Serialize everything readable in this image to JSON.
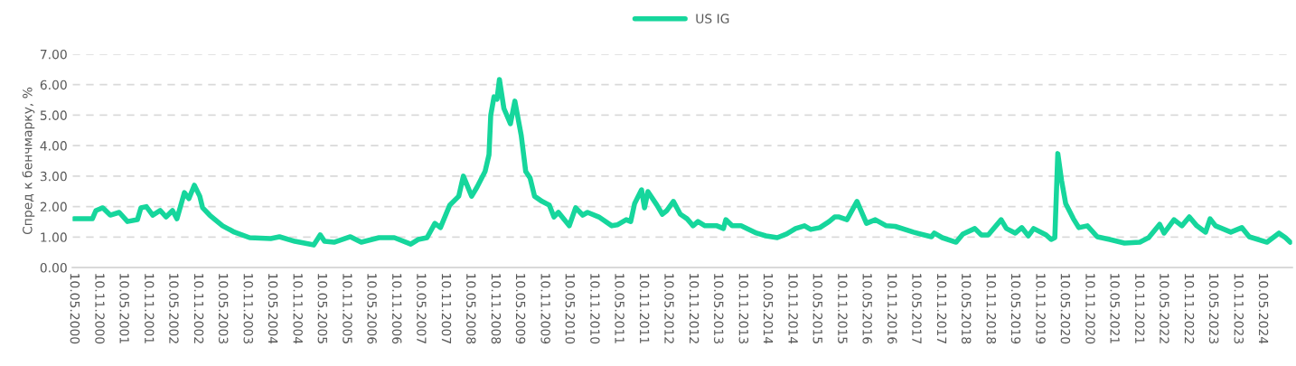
{
  "chart_data": {
    "type": "line",
    "ylabel": "Спред к бенчмарку, %",
    "legend": "top",
    "grid": "y",
    "line_style": "solid",
    "marker": "none",
    "xlim": [
      "2000-05-01",
      "2024-12-15"
    ],
    "ylim": [
      0,
      7
    ],
    "yticks": [
      {
        "value": 0,
        "label": "0.00"
      },
      {
        "value": 1,
        "label": "1.00"
      },
      {
        "value": 2,
        "label": "2.00"
      },
      {
        "value": 3,
        "label": "3.00"
      },
      {
        "value": 4,
        "label": "4.00"
      },
      {
        "value": 5,
        "label": "5.00"
      },
      {
        "value": 6,
        "label": "6.00"
      },
      {
        "value": 7,
        "label": "7.00"
      }
    ],
    "xticks": [
      {
        "value": "2000-05-10",
        "label": "10.05.2000"
      },
      {
        "value": "2000-11-10",
        "label": "10.11.2000"
      },
      {
        "value": "2001-05-10",
        "label": "10.05.2001"
      },
      {
        "value": "2001-11-10",
        "label": "10.11.2001"
      },
      {
        "value": "2002-05-10",
        "label": "10.05.2002"
      },
      {
        "value": "2002-11-10",
        "label": "10.11.2002"
      },
      {
        "value": "2003-05-10",
        "label": "10.05.2003"
      },
      {
        "value": "2003-11-10",
        "label": "10.11.2003"
      },
      {
        "value": "2004-05-10",
        "label": "10.05.2004"
      },
      {
        "value": "2004-11-10",
        "label": "10.11.2004"
      },
      {
        "value": "2005-05-10",
        "label": "10.05.2005"
      },
      {
        "value": "2005-11-10",
        "label": "10.11.2005"
      },
      {
        "value": "2006-05-10",
        "label": "10.05.2006"
      },
      {
        "value": "2006-11-10",
        "label": "10.11.2006"
      },
      {
        "value": "2007-05-10",
        "label": "10.05.2007"
      },
      {
        "value": "2007-11-10",
        "label": "10.11.2007"
      },
      {
        "value": "2008-05-10",
        "label": "10.05.2008"
      },
      {
        "value": "2008-11-10",
        "label": "10.11.2008"
      },
      {
        "value": "2009-05-10",
        "label": "10.05.2009"
      },
      {
        "value": "2009-11-10",
        "label": "10.11.2009"
      },
      {
        "value": "2010-05-10",
        "label": "10.05.2010"
      },
      {
        "value": "2010-11-10",
        "label": "10.11.2010"
      },
      {
        "value": "2011-05-10",
        "label": "10.05.2011"
      },
      {
        "value": "2011-11-10",
        "label": "10.11.2011"
      },
      {
        "value": "2012-05-10",
        "label": "10.05.2012"
      },
      {
        "value": "2012-11-10",
        "label": "10.11.2012"
      },
      {
        "value": "2013-05-10",
        "label": "10.05.2013"
      },
      {
        "value": "2013-11-10",
        "label": "10.11.2013"
      },
      {
        "value": "2014-05-10",
        "label": "10.05.2014"
      },
      {
        "value": "2014-11-10",
        "label": "10.11.2014"
      },
      {
        "value": "2015-05-10",
        "label": "10.05.2015"
      },
      {
        "value": "2015-11-10",
        "label": "10.11.2015"
      },
      {
        "value": "2016-05-10",
        "label": "10.05.2016"
      },
      {
        "value": "2016-11-10",
        "label": "10.11.2016"
      },
      {
        "value": "2017-05-10",
        "label": "10.05.2017"
      },
      {
        "value": "2017-11-10",
        "label": "10.11.2017"
      },
      {
        "value": "2018-05-10",
        "label": "10.05.2018"
      },
      {
        "value": "2018-11-10",
        "label": "10.11.2018"
      },
      {
        "value": "2019-05-10",
        "label": "10.05.2019"
      },
      {
        "value": "2019-11-10",
        "label": "10.11.2019"
      },
      {
        "value": "2020-05-10",
        "label": "10.05.2020"
      },
      {
        "value": "2020-11-10",
        "label": "10.11.2020"
      },
      {
        "value": "2021-05-10",
        "label": "10.05.2021"
      },
      {
        "value": "2021-11-10",
        "label": "10.11.2021"
      },
      {
        "value": "2022-05-10",
        "label": "10.05.2022"
      },
      {
        "value": "2022-11-10",
        "label": "10.11.2022"
      },
      {
        "value": "2023-05-10",
        "label": "10.05.2023"
      },
      {
        "value": "2023-11-10",
        "label": "10.11.2023"
      },
      {
        "value": "2024-05-10",
        "label": "10.05.2024"
      }
    ],
    "series": [
      {
        "name": "US IG",
        "color": "#16d69c",
        "x": [
          "2000-05-10",
          "2000-09-24",
          "2000-10-20",
          "2000-12-10",
          "2001-02-03",
          "2001-04-10",
          "2001-06-10",
          "2001-08-22",
          "2001-09-17",
          "2001-10-27",
          "2001-12-13",
          "2002-02-06",
          "2002-03-22",
          "2002-05-08",
          "2002-06-10",
          "2002-08-04",
          "2002-09-06",
          "2002-10-16",
          "2002-11-25",
          "2002-12-16",
          "2003-02-06",
          "2003-03-10",
          "2003-05-12",
          "2003-08-08",
          "2003-11-28",
          "2004-05-01",
          "2004-07-05",
          "2004-10-27",
          "2005-03-15",
          "2005-05-01",
          "2005-06-03",
          "2005-08-11",
          "2005-12-10",
          "2006-02-28",
          "2006-07-09",
          "2006-10-30",
          "2007-02-28",
          "2007-04-23",
          "2007-06-28",
          "2007-08-25",
          "2007-10-05",
          "2007-12-13",
          "2008-02-17",
          "2008-03-22",
          "2008-05-22",
          "2008-07-01",
          "2008-08-29",
          "2008-09-27",
          "2008-10-10",
          "2008-11-03",
          "2008-11-25",
          "2008-12-13",
          "2009-01-15",
          "2009-03-04",
          "2009-04-06",
          "2009-05-23",
          "2009-06-25",
          "2009-07-27",
          "2009-08-29",
          "2009-10-23",
          "2009-12-16",
          "2010-01-19",
          "2010-02-21",
          "2010-05-12",
          "2010-06-28",
          "2010-08-19",
          "2010-09-24",
          "2010-12-16",
          "2011-03-22",
          "2011-05-01",
          "2011-07-06",
          "2011-08-08",
          "2011-09-06",
          "2011-10-27",
          "2011-11-18",
          "2011-12-13",
          "2012-02-17",
          "2012-03-28",
          "2012-05-01",
          "2012-06-18",
          "2012-08-08",
          "2012-09-27",
          "2012-11-10",
          "2012-12-16",
          "2013-02-06",
          "2013-05-05",
          "2013-06-22",
          "2013-07-10",
          "2013-08-25",
          "2013-10-30",
          "2014-02-21",
          "2014-05-01",
          "2014-07-24",
          "2014-10-01",
          "2014-12-06",
          "2015-02-10",
          "2015-03-28",
          "2015-06-03",
          "2015-08-11",
          "2015-09-20",
          "2015-10-23",
          "2015-12-20",
          "2016-03-03",
          "2016-05-12",
          "2016-07-16",
          "2016-10-05",
          "2016-12-10",
          "2017-04-23",
          "2017-09-03",
          "2017-09-24",
          "2017-11-22",
          "2018-03-04",
          "2018-04-23",
          "2018-07-20",
          "2018-09-06",
          "2018-10-27",
          "2019-01-30",
          "2019-03-10",
          "2019-05-15",
          "2019-07-01",
          "2019-08-19",
          "2019-09-27",
          "2019-12-28",
          "2020-02-03",
          "2020-03-01",
          "2020-03-23",
          "2020-04-20",
          "2020-05-20",
          "2020-07-16",
          "2020-08-25",
          "2020-10-27",
          "2021-01-08",
          "2021-04-10",
          "2021-07-28",
          "2021-11-18",
          "2022-01-22",
          "2022-04-13",
          "2022-05-16",
          "2022-07-28",
          "2022-09-24",
          "2022-11-18",
          "2023-01-12",
          "2023-03-18",
          "2023-04-20",
          "2023-05-30",
          "2023-09-20",
          "2023-12-10",
          "2024-02-03",
          "2024-06-13",
          "2024-09-09",
          "2024-10-27",
          "2024-12-01"
        ],
        "values": [
          1.6,
          1.6,
          1.87,
          1.96,
          1.72,
          1.81,
          1.51,
          1.57,
          1.96,
          2.0,
          1.72,
          1.87,
          1.66,
          1.87,
          1.6,
          2.46,
          2.26,
          2.7,
          2.34,
          1.96,
          1.72,
          1.6,
          1.37,
          1.16,
          0.98,
          0.95,
          1.01,
          0.86,
          0.74,
          1.07,
          0.86,
          0.83,
          1.01,
          0.83,
          0.98,
          0.98,
          0.77,
          0.92,
          0.98,
          1.45,
          1.31,
          2.05,
          2.34,
          3.0,
          2.34,
          2.64,
          3.15,
          3.7,
          5.0,
          5.6,
          5.52,
          6.17,
          5.22,
          4.72,
          5.46,
          4.33,
          3.15,
          2.94,
          2.34,
          2.17,
          2.05,
          1.66,
          1.81,
          1.37,
          1.96,
          1.72,
          1.81,
          1.66,
          1.37,
          1.4,
          1.57,
          1.51,
          2.1,
          2.55,
          1.96,
          2.49,
          2.05,
          1.75,
          1.87,
          2.17,
          1.75,
          1.6,
          1.37,
          1.51,
          1.37,
          1.37,
          1.28,
          1.57,
          1.37,
          1.37,
          1.13,
          1.04,
          0.98,
          1.1,
          1.28,
          1.37,
          1.25,
          1.31,
          1.51,
          1.66,
          1.66,
          1.57,
          2.17,
          1.45,
          1.57,
          1.37,
          1.35,
          1.16,
          1.01,
          1.13,
          0.98,
          0.83,
          1.1,
          1.28,
          1.07,
          1.07,
          1.57,
          1.28,
          1.13,
          1.31,
          1.04,
          1.28,
          1.07,
          0.92,
          0.98,
          3.74,
          2.85,
          2.1,
          1.6,
          1.31,
          1.37,
          1.01,
          0.92,
          0.8,
          0.83,
          0.98,
          1.42,
          1.13,
          1.57,
          1.37,
          1.66,
          1.37,
          1.16,
          1.6,
          1.37,
          1.16,
          1.31,
          1.01,
          0.83,
          1.13,
          0.98,
          0.83
        ]
      }
    ]
  }
}
